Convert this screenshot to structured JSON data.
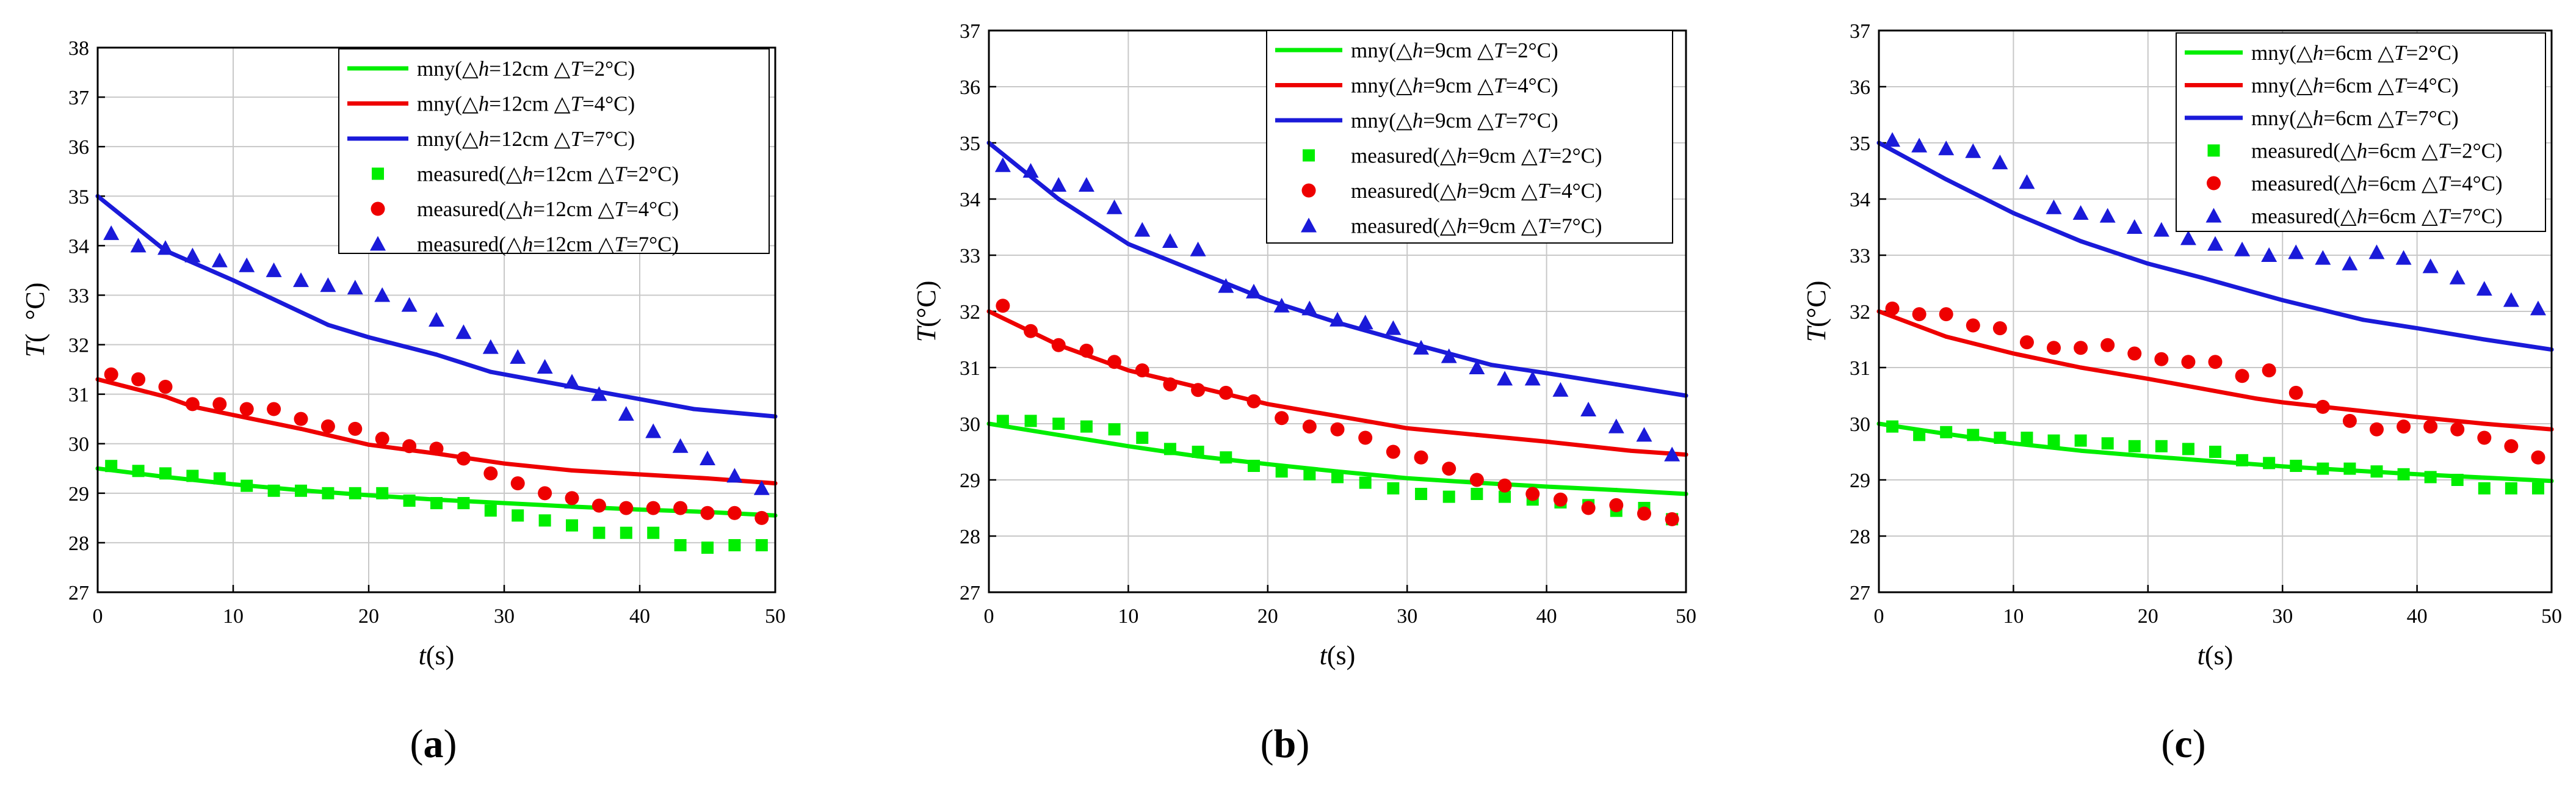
{
  "colors": {
    "green": "#00ee00",
    "red": "#ee0000",
    "blue": "#1a1ad9",
    "grid": "#c8c8c8",
    "axis": "#000000"
  },
  "chart_data": [
    {
      "type": "scatter",
      "panel_label": "(a)",
      "panel_letter": "a",
      "xlabel": "t(s)",
      "xlabel_italic": "t",
      "xlabel_rest": "(s)",
      "ylabel": "T(°C)",
      "ylabel_italic": "T",
      "ylabel_rest": "( °C)",
      "xlim": [
        0,
        50
      ],
      "ylim": [
        27,
        38
      ],
      "xticks": [
        0,
        10,
        20,
        30,
        40,
        50
      ],
      "yticks": [
        27,
        28,
        29,
        30,
        31,
        32,
        33,
        34,
        35,
        36,
        37,
        38
      ],
      "grid": true,
      "legend_position": "top-right",
      "line_series": [
        {
          "name": "mny(△h=12cm △T=2°C)",
          "pre": "mny(△",
          "h": "h",
          "mid": "=12cm △",
          "t": "T",
          "post": "=2°C)",
          "color": "green",
          "x": [
            0,
            5,
            10,
            15,
            20,
            25,
            30,
            35,
            40,
            45,
            50
          ],
          "y": [
            29.5,
            29.33,
            29.18,
            29.06,
            28.96,
            28.87,
            28.8,
            28.73,
            28.67,
            28.62,
            28.55
          ]
        },
        {
          "name": "mny(△h=12cm △T=4°C)",
          "pre": "mny(△",
          "h": "h",
          "mid": "=12cm △",
          "t": "T",
          "post": "=4°C)",
          "color": "red",
          "x": [
            0,
            5,
            7,
            10,
            15,
            20,
            25,
            30,
            35,
            40,
            45,
            50
          ],
          "y": [
            31.3,
            30.95,
            30.75,
            30.58,
            30.3,
            29.98,
            29.8,
            29.6,
            29.46,
            29.38,
            29.3,
            29.2
          ]
        },
        {
          "name": "mny(△h=12cm △T=7°C)",
          "pre": "mny(△",
          "h": "h",
          "mid": "=12cm △",
          "t": "T",
          "post": "=7°C)",
          "color": "blue",
          "x": [
            0,
            5,
            10,
            17,
            20,
            25,
            29,
            35,
            40,
            44,
            50
          ],
          "y": [
            35.0,
            33.9,
            33.3,
            32.4,
            32.15,
            31.8,
            31.45,
            31.15,
            30.9,
            30.7,
            30.55
          ]
        }
      ],
      "marker_series": [
        {
          "name": "measured(△h=12cm △T=2°C)",
          "pre": "measured(△",
          "h": "h",
          "mid": "=12cm △",
          "t": "T",
          "post": "=2°C)",
          "color": "green",
          "marker": "square",
          "x": [
            1,
            3,
            5,
            7,
            9,
            11,
            13,
            15,
            17,
            19,
            21,
            23,
            25,
            27,
            29,
            31,
            33,
            35,
            37,
            39,
            41,
            43,
            45,
            47,
            49
          ],
          "y": [
            29.55,
            29.45,
            29.4,
            29.35,
            29.3,
            29.15,
            29.05,
            29.05,
            29.0,
            29.0,
            29.0,
            28.85,
            28.8,
            28.8,
            28.65,
            28.55,
            28.45,
            28.35,
            28.2,
            28.2,
            28.2,
            27.95,
            27.9,
            27.95,
            27.95
          ]
        },
        {
          "name": "measured(△h=12cm △T=4°C)",
          "pre": "measured(△",
          "h": "h",
          "mid": "=12cm △",
          "t": "T",
          "post": "=4°C)",
          "color": "red",
          "marker": "circle",
          "x": [
            1,
            3,
            5,
            7,
            9,
            11,
            13,
            15,
            17,
            19,
            21,
            23,
            25,
            27,
            29,
            31,
            33,
            35,
            37,
            39,
            41,
            43,
            45,
            47,
            49
          ],
          "y": [
            31.4,
            31.3,
            31.15,
            30.8,
            30.8,
            30.7,
            30.7,
            30.5,
            30.35,
            30.3,
            30.1,
            29.95,
            29.9,
            29.7,
            29.4,
            29.2,
            29.0,
            28.9,
            28.75,
            28.7,
            28.7,
            28.7,
            28.6,
            28.6,
            28.5
          ]
        },
        {
          "name": "measured(△h=12cm △T=7°C)",
          "pre": "measured(△",
          "h": "h",
          "mid": "=12cm △",
          "t": "T",
          "post": "=7°C)",
          "color": "blue",
          "marker": "triangle",
          "x": [
            1,
            3,
            5,
            7,
            9,
            11,
            13,
            15,
            17,
            19,
            21,
            23,
            25,
            27,
            29,
            31,
            33,
            35,
            37,
            39,
            41,
            43,
            45,
            47,
            49
          ],
          "y": [
            34.25,
            34.0,
            33.95,
            33.8,
            33.7,
            33.6,
            33.5,
            33.3,
            33.2,
            33.15,
            33.0,
            32.8,
            32.5,
            32.25,
            31.95,
            31.75,
            31.55,
            31.25,
            31.0,
            30.6,
            30.25,
            29.95,
            29.7,
            29.35,
            29.1
          ]
        }
      ]
    },
    {
      "type": "scatter",
      "panel_label": "(b)",
      "panel_letter": "b",
      "xlabel": "t(s)",
      "xlabel_italic": "t",
      "xlabel_rest": "(s)",
      "ylabel": "T(°C)",
      "ylabel_italic": "T",
      "ylabel_rest": "(°C)",
      "xlim": [
        0,
        50
      ],
      "ylim": [
        27,
        37
      ],
      "xticks": [
        0,
        10,
        20,
        30,
        40,
        50
      ],
      "yticks": [
        27,
        28,
        29,
        30,
        31,
        32,
        33,
        34,
        35,
        36,
        37
      ],
      "grid": true,
      "legend_position": "top-right",
      "line_series": [
        {
          "name": "mny(△h=9cm △T=2°C)",
          "pre": "mny(△",
          "h": "h",
          "mid": "=9cm △",
          "t": "T",
          "post": "=2°C)",
          "color": "green",
          "x": [
            0,
            5,
            10,
            15,
            20,
            25,
            30,
            35,
            40,
            45,
            50
          ],
          "y": [
            30.0,
            29.8,
            29.6,
            29.42,
            29.28,
            29.15,
            29.03,
            28.95,
            28.88,
            28.82,
            28.75
          ]
        },
        {
          "name": "mny(△h=9cm △T=4°C)",
          "pre": "mny(△",
          "h": "h",
          "mid": "=9cm △",
          "t": "T",
          "post": "=4°C)",
          "color": "red",
          "x": [
            0,
            5,
            10,
            15,
            20,
            27,
            30,
            35,
            40,
            46,
            50
          ],
          "y": [
            32.0,
            31.4,
            30.95,
            30.65,
            30.35,
            30.05,
            29.92,
            29.8,
            29.68,
            29.52,
            29.45
          ]
        },
        {
          "name": "mny(△h=9cm △T=7°C)",
          "pre": "mny(△",
          "h": "h",
          "mid": "=9cm △",
          "t": "T",
          "post": "=7°C)",
          "color": "blue",
          "x": [
            0,
            5,
            10,
            15,
            20,
            25,
            30,
            36,
            40,
            45,
            50
          ],
          "y": [
            35.0,
            34.0,
            33.2,
            32.7,
            32.2,
            31.8,
            31.45,
            31.05,
            30.9,
            30.7,
            30.5
          ]
        }
      ],
      "marker_series": [
        {
          "name": "measured(△h=9cm △T=2°C)",
          "pre": "measured(△",
          "h": "h",
          "mid": "=9cm △",
          "t": "T",
          "post": "=2°C)",
          "color": "green",
          "marker": "square",
          "x": [
            1,
            3,
            5,
            7,
            9,
            11,
            13,
            15,
            17,
            19,
            21,
            23,
            25,
            27,
            29,
            31,
            33,
            35,
            37,
            39,
            41,
            43,
            45,
            47,
            49
          ],
          "y": [
            30.05,
            30.05,
            30.0,
            29.95,
            29.9,
            29.75,
            29.55,
            29.5,
            29.4,
            29.25,
            29.15,
            29.1,
            29.05,
            28.95,
            28.85,
            28.75,
            28.7,
            28.75,
            28.7,
            28.65,
            28.6,
            28.55,
            28.45,
            28.5,
            28.3
          ]
        },
        {
          "name": "measured(△h=9cm △T=4°C)",
          "pre": "measured(△",
          "h": "h",
          "mid": "=9cm △",
          "t": "T",
          "post": "=4°C)",
          "color": "red",
          "marker": "circle",
          "x": [
            1,
            3,
            5,
            7,
            9,
            11,
            13,
            15,
            17,
            19,
            21,
            23,
            25,
            27,
            29,
            31,
            33,
            35,
            37,
            39,
            41,
            43,
            45,
            47,
            49
          ],
          "y": [
            32.1,
            31.65,
            31.4,
            31.3,
            31.1,
            30.95,
            30.7,
            30.6,
            30.55,
            30.4,
            30.1,
            29.95,
            29.9,
            29.75,
            29.5,
            29.4,
            29.2,
            29.0,
            28.9,
            28.75,
            28.65,
            28.5,
            28.55,
            28.4,
            28.3
          ]
        },
        {
          "name": "measured(△h=9cm △T=7°C)",
          "pre": "measured(△",
          "h": "h",
          "mid": "=9cm △",
          "t": "T",
          "post": "=7°C)",
          "color": "blue",
          "marker": "triangle",
          "x": [
            1,
            3,
            5,
            7,
            9,
            11,
            13,
            15,
            17,
            19,
            21,
            23,
            25,
            27,
            29,
            31,
            33,
            35,
            37,
            39,
            41,
            43,
            45,
            47,
            49
          ],
          "y": [
            34.6,
            34.5,
            34.25,
            34.25,
            33.85,
            33.45,
            33.25,
            33.1,
            32.45,
            32.35,
            32.1,
            32.05,
            31.85,
            31.8,
            31.7,
            31.35,
            31.2,
            31.0,
            30.8,
            30.8,
            30.6,
            30.25,
            29.95,
            29.8,
            29.45
          ]
        }
      ]
    },
    {
      "type": "scatter",
      "panel_label": "(c)",
      "panel_letter": "c",
      "xlabel": "t(s)",
      "xlabel_italic": "t",
      "xlabel_rest": "(s)",
      "ylabel": "T(°C)",
      "ylabel_italic": "T",
      "ylabel_rest": "(°C)",
      "xlim": [
        0,
        50
      ],
      "ylim": [
        27,
        37
      ],
      "xticks": [
        0,
        10,
        20,
        30,
        40,
        50
      ],
      "yticks": [
        27,
        28,
        29,
        30,
        31,
        32,
        33,
        34,
        35,
        36,
        37
      ],
      "grid": true,
      "legend_position": "top-right",
      "line_series": [
        {
          "name": "mny(△h=6cm △T=2°C)",
          "pre": "mny(△",
          "h": "h",
          "mid": "=6cm △",
          "t": "T",
          "post": "=2°C)",
          "color": "green",
          "x": [
            0,
            5,
            10,
            15,
            20,
            25,
            30,
            35,
            40,
            45,
            50
          ],
          "y": [
            30.0,
            29.82,
            29.65,
            29.52,
            29.42,
            29.33,
            29.24,
            29.17,
            29.1,
            29.04,
            28.98
          ]
        },
        {
          "name": "mny(△h=6cm △T=4°C)",
          "pre": "mny(△",
          "h": "h",
          "mid": "=6cm △",
          "t": "T",
          "post": "=4°C)",
          "color": "red",
          "x": [
            0,
            5,
            10,
            15,
            20,
            28,
            30,
            35,
            40,
            45,
            50
          ],
          "y": [
            32.0,
            31.55,
            31.25,
            31.0,
            30.8,
            30.45,
            30.38,
            30.25,
            30.12,
            30.0,
            29.9
          ]
        },
        {
          "name": "mny(△h=6cm △T=7°C)",
          "pre": "mny(△",
          "h": "h",
          "mid": "=6cm △",
          "t": "T",
          "post": "=7°C)",
          "color": "blue",
          "x": [
            0,
            5,
            10,
            15,
            20,
            24,
            30,
            36,
            40,
            45,
            50
          ],
          "y": [
            35.0,
            34.35,
            33.75,
            33.25,
            32.85,
            32.6,
            32.2,
            31.85,
            31.7,
            31.5,
            31.32
          ]
        }
      ],
      "marker_series": [
        {
          "name": "measured(△h=6cm △T=2°C)",
          "pre": "measured(△",
          "h": "h",
          "mid": "=6cm △",
          "t": "T",
          "post": "=2°C)",
          "color": "green",
          "marker": "square",
          "x": [
            1,
            3,
            5,
            7,
            9,
            11,
            13,
            15,
            17,
            19,
            21,
            23,
            25,
            27,
            29,
            31,
            33,
            35,
            37,
            39,
            41,
            43,
            45,
            47,
            49
          ],
          "y": [
            29.95,
            29.8,
            29.85,
            29.8,
            29.75,
            29.75,
            29.7,
            29.7,
            29.65,
            29.6,
            29.6,
            29.55,
            29.5,
            29.35,
            29.3,
            29.25,
            29.2,
            29.2,
            29.15,
            29.1,
            29.05,
            29.0,
            28.85,
            28.85,
            28.85
          ]
        },
        {
          "name": "measured(△h=6cm △T=4°C)",
          "pre": "measured(△",
          "h": "h",
          "mid": "=6cm △",
          "t": "T",
          "post": "=4°C)",
          "color": "red",
          "marker": "circle",
          "x": [
            1,
            3,
            5,
            7,
            9,
            11,
            13,
            15,
            17,
            19,
            21,
            23,
            25,
            27,
            29,
            31,
            33,
            35,
            37,
            39,
            41,
            43,
            45,
            47,
            49
          ],
          "y": [
            32.05,
            31.95,
            31.95,
            31.75,
            31.7,
            31.45,
            31.35,
            31.35,
            31.4,
            31.25,
            31.15,
            31.1,
            31.1,
            30.85,
            30.95,
            30.55,
            30.3,
            30.05,
            29.9,
            29.95,
            29.95,
            29.9,
            29.75,
            29.6,
            29.4
          ]
        },
        {
          "name": "measured(△h=6cm △T=7°C)",
          "pre": "measured(△",
          "h": "h",
          "mid": "=6cm △",
          "t": "T",
          "post": "=7°C)",
          "color": "blue",
          "marker": "triangle",
          "x": [
            1,
            3,
            5,
            7,
            9,
            11,
            13,
            15,
            17,
            19,
            21,
            23,
            25,
            27,
            29,
            31,
            33,
            35,
            37,
            39,
            41,
            43,
            45,
            47,
            49
          ],
          "y": [
            35.05,
            34.95,
            34.9,
            34.85,
            34.65,
            34.3,
            33.85,
            33.75,
            33.7,
            33.5,
            33.45,
            33.3,
            33.2,
            33.1,
            33.0,
            33.05,
            32.95,
            32.85,
            33.05,
            32.95,
            32.8,
            32.6,
            32.4,
            32.2,
            32.05
          ]
        }
      ]
    }
  ]
}
